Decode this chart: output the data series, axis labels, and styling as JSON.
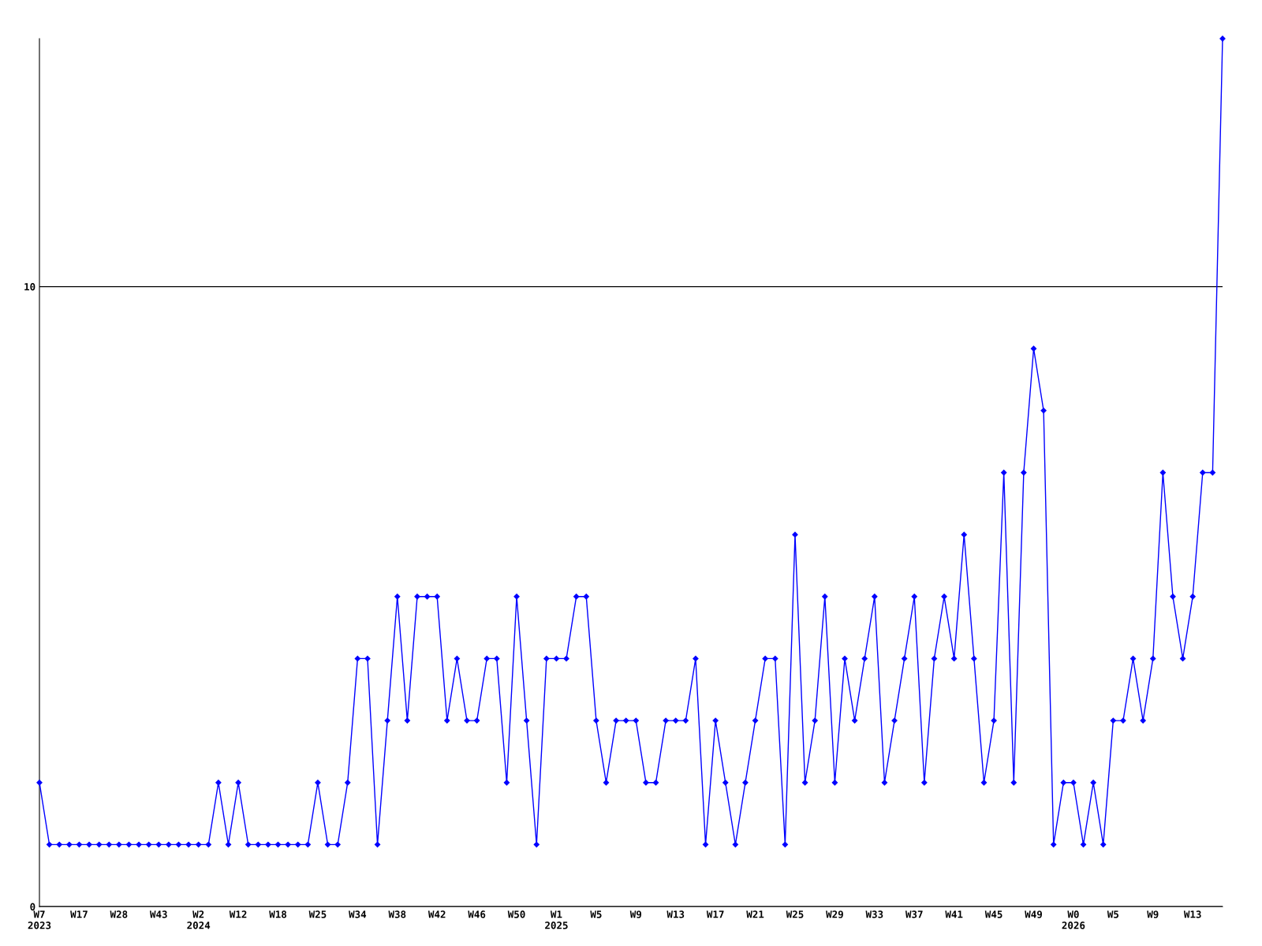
{
  "chart_data": {
    "type": "line",
    "categories": [
      "W7\n2023",
      null,
      null,
      null,
      "W17",
      null,
      null,
      null,
      "W28",
      null,
      null,
      null,
      "W43",
      null,
      null,
      null,
      "W2\n2024",
      null,
      null,
      null,
      "W12",
      null,
      null,
      null,
      "W18",
      null,
      null,
      null,
      "W25",
      null,
      null,
      null,
      "W34",
      null,
      null,
      null,
      "W38",
      null,
      null,
      null,
      "W42",
      null,
      null,
      null,
      "W46",
      null,
      null,
      null,
      "W50",
      null,
      null,
      null,
      "W1\n2025",
      null,
      null,
      null,
      "W5",
      null,
      null,
      null,
      "W9",
      null,
      null,
      null,
      "W13",
      null,
      null,
      null,
      "W17",
      null,
      null,
      null,
      "W21",
      null,
      null,
      null,
      "W25",
      null,
      null,
      null,
      "W29",
      null,
      null,
      null,
      "W33",
      null,
      null,
      null,
      "W37",
      null,
      null,
      null,
      "W41",
      null,
      null,
      null,
      "W45",
      null,
      null,
      null,
      "W49",
      null,
      null,
      null,
      "W0\n2026",
      null,
      null,
      null,
      "W5",
      null,
      null,
      null,
      "W9",
      null,
      null,
      null,
      "W13",
      null,
      null,
      null
    ],
    "series": [
      {
        "color": "#0000ff",
        "values": [
          2,
          1,
          1,
          1,
          1,
          1,
          1,
          1,
          1,
          1,
          1,
          1,
          1,
          1,
          1,
          1,
          1,
          1,
          2,
          1,
          2,
          1,
          1,
          1,
          1,
          1,
          1,
          1,
          2,
          1,
          1,
          2,
          4,
          4,
          1,
          3,
          5,
          3,
          5,
          5,
          5,
          3,
          4,
          3,
          3,
          4,
          4,
          2,
          5,
          3,
          1,
          4,
          4,
          4,
          5,
          5,
          3,
          2,
          3,
          3,
          3,
          2,
          2,
          3,
          3,
          3,
          4,
          1,
          3,
          2,
          1,
          2,
          3,
          4,
          4,
          1,
          6,
          2,
          3,
          5,
          2,
          4,
          3,
          4,
          5,
          2,
          3,
          4,
          5,
          2,
          4,
          5,
          4,
          6,
          4,
          2,
          3,
          7,
          2,
          7,
          9,
          8,
          1,
          2,
          2,
          1,
          2,
          1,
          3,
          3,
          4,
          3,
          4,
          7,
          5,
          4,
          5,
          7,
          7,
          14
        ]
      }
    ],
    "ylim": [
      0,
      14
    ],
    "yticks": [
      0,
      10
    ],
    "grid": "y",
    "marker": "diamond",
    "line_style": "solid"
  }
}
